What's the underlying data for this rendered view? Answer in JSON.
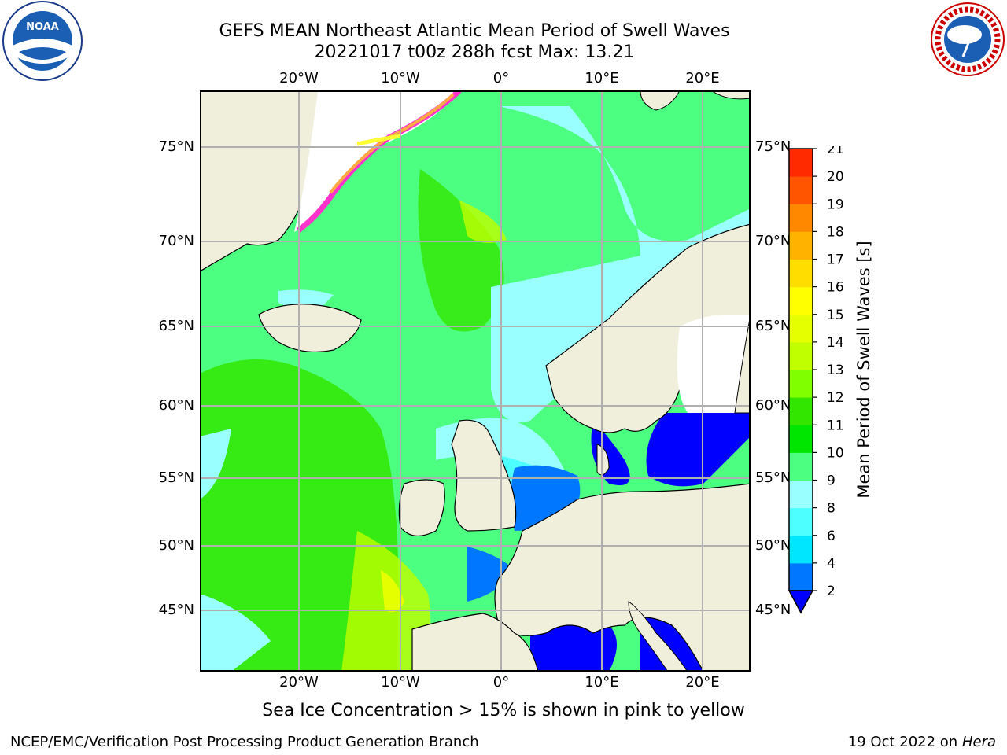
{
  "title_line1": "GEFS MEAN Northeast Atlantic Mean Period of Swell Waves",
  "title_line2": "20221017 t00z 288h fcst   Max: 13.21",
  "lon_labels": [
    "20°W",
    "10°W",
    "0°",
    "10°E",
    "20°E"
  ],
  "lat_labels": [
    "75°N",
    "70°N",
    "65°N",
    "60°N",
    "55°N",
    "50°N",
    "45°N"
  ],
  "colorbar": {
    "label": "Mean Period of Swell Waves [s]",
    "ticks": [
      "2",
      "4",
      "6",
      "8",
      "9",
      "10",
      "11",
      "12",
      "13",
      "14",
      "15",
      "16",
      "17",
      "18",
      "19",
      "20",
      "21"
    ],
    "colors": [
      "#0077ff",
      "#00e6ff",
      "#4dffff",
      "#99ffff",
      "#4dff80",
      "#00e600",
      "#33e600",
      "#80ff00",
      "#bfff00",
      "#e6ff00",
      "#ffff00",
      "#ffdd00",
      "#ffb300",
      "#ff8800",
      "#ff5500",
      "#ff2a00",
      "#ff0000"
    ],
    "extend_color": "#0000ff"
  },
  "map": {
    "land_color": "#efefdc",
    "ice_note_colors": [
      "#ff33cc",
      "#ffaa44",
      "#ffff33"
    ]
  },
  "logos": {
    "noaa_text": "NOAA",
    "nws_text": "NATIONAL WEATHER SERVICE"
  },
  "note": "Sea Ice Concentration > 15% is shown in pink to yellow",
  "footer_left": "NCEP/EMC/Verification Post Processing Product Generation Branch",
  "footer_date": "19 Oct 2022 on",
  "footer_machine": "Hera"
}
